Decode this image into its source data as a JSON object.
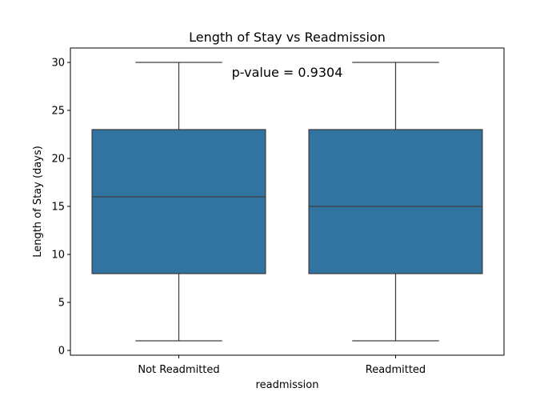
{
  "chart_data": {
    "type": "box",
    "title": "Length of Stay vs Readmission",
    "xlabel": "readmission",
    "ylabel": "Length of Stay (days)",
    "ylim": [
      -0.5,
      31.5
    ],
    "yticks": [
      0,
      5,
      10,
      15,
      20,
      25,
      30
    ],
    "ytick_labels": [
      "0",
      "5",
      "10",
      "15",
      "20",
      "25",
      "30"
    ],
    "grid": false,
    "box_color": "#3274a1",
    "categories": [
      "Not Readmitted",
      "Readmitted"
    ],
    "boxes": [
      {
        "category": "Not Readmitted",
        "whisker_low": 1,
        "q1": 8,
        "median": 16,
        "q3": 23,
        "whisker_high": 30
      },
      {
        "category": "Readmitted",
        "whisker_low": 1,
        "q1": 8,
        "median": 15,
        "q3": 23,
        "whisker_high": 30
      }
    ],
    "annotation": {
      "text": "p-value = 0.9304",
      "color": "#ff0000"
    }
  }
}
